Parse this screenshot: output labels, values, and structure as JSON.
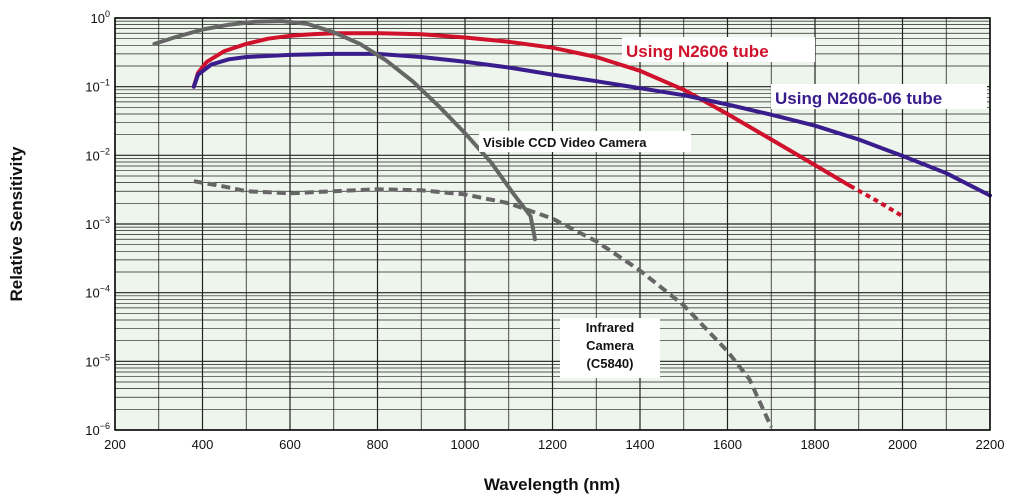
{
  "chart_data": {
    "type": "line",
    "xlabel": "Wavelength (nm)",
    "ylabel": "Relative Sensitivity",
    "xlim": [
      200,
      2200
    ],
    "ylim": [
      1e-06,
      1
    ],
    "yscale": "log",
    "grid": true,
    "x_ticks": [
      "200",
      "400",
      "600",
      "800",
      "1000",
      "1200",
      "1400",
      "1600",
      "1800",
      "2000",
      "2200"
    ],
    "y_ticks": [
      {
        "base": "10",
        "exp": "0"
      },
      {
        "base": "10",
        "exp": "−1"
      },
      {
        "base": "10",
        "exp": "−2"
      },
      {
        "base": "10",
        "exp": "−3"
      },
      {
        "base": "10",
        "exp": "−4"
      },
      {
        "base": "10",
        "exp": "−5"
      },
      {
        "base": "10",
        "exp": "−6"
      }
    ],
    "series": [
      {
        "name": "Using N2606 tube",
        "color": "#d0112b",
        "style": "solid",
        "points": [
          [
            380,
            0.1
          ],
          [
            390,
            0.16
          ],
          [
            410,
            0.23
          ],
          [
            450,
            0.33
          ],
          [
            500,
            0.42
          ],
          [
            550,
            0.5
          ],
          [
            600,
            0.55
          ],
          [
            650,
            0.58
          ],
          [
            700,
            0.6
          ],
          [
            800,
            0.6
          ],
          [
            900,
            0.58
          ],
          [
            1000,
            0.52
          ],
          [
            1100,
            0.45
          ],
          [
            1200,
            0.37
          ],
          [
            1300,
            0.27
          ],
          [
            1400,
            0.17
          ],
          [
            1500,
            0.09
          ],
          [
            1600,
            0.04
          ],
          [
            1700,
            0.017
          ],
          [
            1800,
            0.0072
          ],
          [
            1880,
            0.0036
          ]
        ]
      },
      {
        "name": "Using N2606 tube (extrapolated)",
        "color": "#d0112b",
        "style": "dotted",
        "points": [
          [
            1880,
            0.0036
          ],
          [
            1940,
            0.0022
          ],
          [
            2000,
            0.0013
          ]
        ]
      },
      {
        "name": "Using N2606-06 tube",
        "color": "#3a1d8c",
        "style": "solid",
        "points": [
          [
            380,
            0.1
          ],
          [
            390,
            0.15
          ],
          [
            420,
            0.21
          ],
          [
            460,
            0.25
          ],
          [
            500,
            0.27
          ],
          [
            600,
            0.29
          ],
          [
            700,
            0.3
          ],
          [
            800,
            0.3
          ],
          [
            900,
            0.27
          ],
          [
            1000,
            0.23
          ],
          [
            1100,
            0.19
          ],
          [
            1200,
            0.15
          ],
          [
            1300,
            0.12
          ],
          [
            1400,
            0.095
          ],
          [
            1500,
            0.075
          ],
          [
            1600,
            0.055
          ],
          [
            1700,
            0.039
          ],
          [
            1800,
            0.027
          ],
          [
            1900,
            0.017
          ],
          [
            2000,
            0.0098
          ],
          [
            2100,
            0.0055
          ],
          [
            2200,
            0.0026
          ]
        ]
      },
      {
        "name": "Visible CCD Video Camera",
        "color": "#666666",
        "style": "solid",
        "points": [
          [
            290,
            0.42
          ],
          [
            340,
            0.53
          ],
          [
            400,
            0.68
          ],
          [
            460,
            0.8
          ],
          [
            520,
            0.88
          ],
          [
            580,
            0.9
          ],
          [
            640,
            0.82
          ],
          [
            700,
            0.62
          ],
          [
            760,
            0.42
          ],
          [
            820,
            0.24
          ],
          [
            880,
            0.12
          ],
          [
            940,
            0.052
          ],
          [
            1000,
            0.021
          ],
          [
            1060,
            0.0078
          ],
          [
            1110,
            0.0028
          ],
          [
            1150,
            0.0013
          ],
          [
            1160,
            0.0006
          ]
        ]
      },
      {
        "name": "Infrared Camera (C5840)",
        "color": "#666666",
        "style": "dashed",
        "points": [
          [
            380,
            0.0042
          ],
          [
            450,
            0.0035
          ],
          [
            500,
            0.003
          ],
          [
            600,
            0.0028
          ],
          [
            700,
            0.003
          ],
          [
            800,
            0.0032
          ],
          [
            900,
            0.0031
          ],
          [
            1000,
            0.0027
          ],
          [
            1100,
            0.002
          ],
          [
            1200,
            0.0012
          ],
          [
            1300,
            0.00056
          ],
          [
            1400,
            0.00021
          ],
          [
            1500,
            6.5e-05
          ],
          [
            1600,
            1.4e-05
          ],
          [
            1650,
            5.5e-06
          ],
          [
            1700,
            1.1e-06
          ]
        ]
      }
    ],
    "annotations": [
      {
        "text": "Using N2606 tube",
        "color": "#d0112b"
      },
      {
        "text": "Using N2606-06 tube",
        "color": "#3a1d8c"
      },
      {
        "text": "Visible CCD Video Camera",
        "color": "#111111"
      },
      {
        "lines": [
          "Infrared",
          "Camera",
          "(C5840)"
        ],
        "color": "#111111"
      }
    ],
    "colors": {
      "plot_background": "#eef5ec",
      "grid": "#222222",
      "frame": "#000000"
    }
  }
}
